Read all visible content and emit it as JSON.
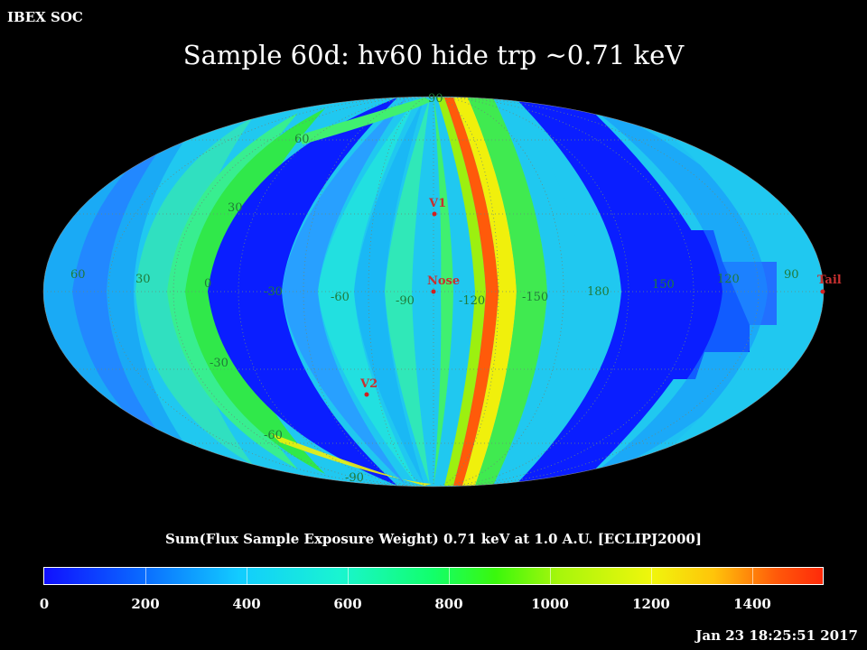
{
  "header": {
    "org": "IBEX SOC",
    "title": "Sample 60d: hv60 hide trp ~0.71 keV"
  },
  "map": {
    "projection": "Mollweide",
    "lat_grid_labels": [
      "90",
      "60",
      "30",
      "-30",
      "-60",
      "-90"
    ],
    "lon_grid_labels": [
      "60",
      "30",
      "0",
      "-30",
      "-60",
      "-90",
      "-120",
      "-150",
      "180",
      "150",
      "120",
      "90"
    ],
    "markers": [
      {
        "id": "v1",
        "label": "V1"
      },
      {
        "id": "nose",
        "label": "Nose"
      },
      {
        "id": "v2",
        "label": "V2"
      },
      {
        "id": "tail",
        "label": "Tail"
      }
    ],
    "colors": {
      "grid": "#6a8a7a",
      "grid_label": "#1f7a3a",
      "marker": "#d02020",
      "marker_label": "#c83030"
    }
  },
  "colorbar": {
    "label": "Sum(Flux Sample Exposure Weight)  0.71 keV at 1.0 A.U. [ECLIPJ2000]",
    "ticks": [
      "0",
      "200",
      "400",
      "600",
      "800",
      "1000",
      "1200",
      "1400"
    ],
    "range": [
      0,
      1540
    ]
  },
  "footer": {
    "timestamp": "Jan 23 18:25:51 2017"
  }
}
